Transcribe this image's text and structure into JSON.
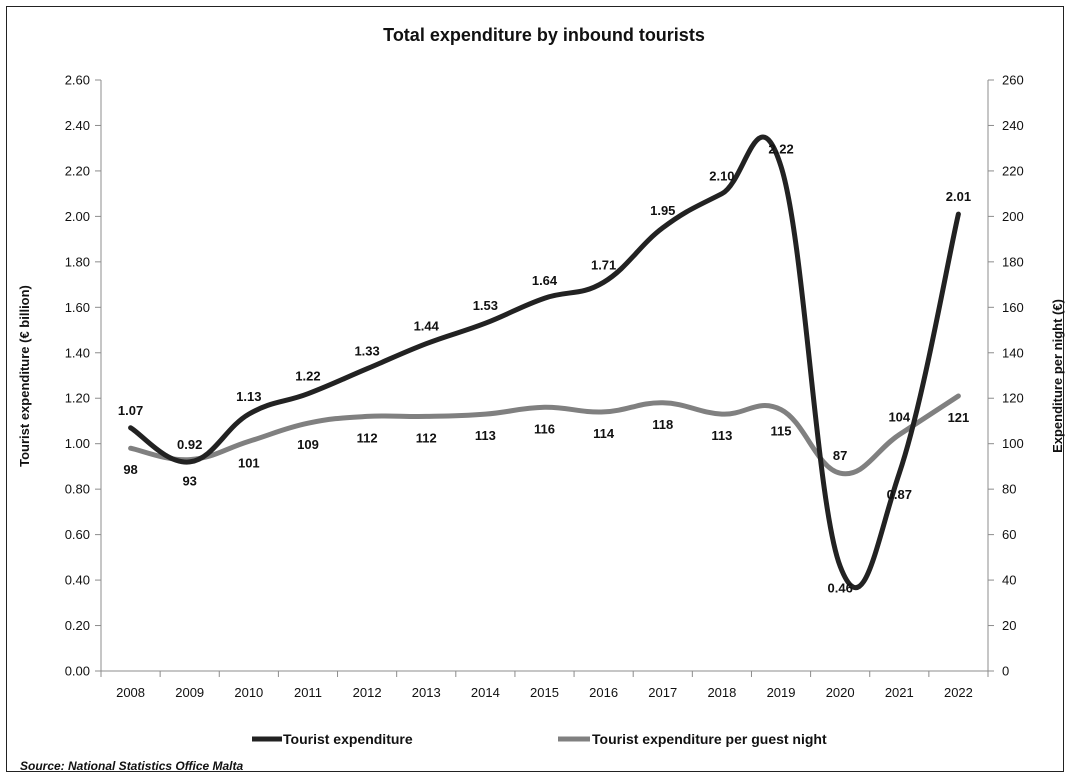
{
  "chart_data": {
    "type": "line",
    "title": "Total expenditure by inbound tourists",
    "categories": [
      "2008",
      "2009",
      "2010",
      "2011",
      "2012",
      "2013",
      "2014",
      "2015",
      "2016",
      "2017",
      "2018",
      "2019",
      "2020",
      "2021",
      "2022"
    ],
    "ylabel_left": "Tourist expenditure (€ billion)",
    "ylabel_right": "Expenditure per night (€)",
    "y_left": {
      "min": 0,
      "max": 2.6,
      "step": 0.2,
      "ticks": [
        "0.00",
        "0.20",
        "0.40",
        "0.60",
        "0.80",
        "1.00",
        "1.20",
        "1.40",
        "1.60",
        "1.80",
        "2.00",
        "2.20",
        "2.40",
        "2.60"
      ]
    },
    "y_right": {
      "min": 0,
      "max": 260,
      "step": 20,
      "ticks": [
        "0",
        "20",
        "40",
        "60",
        "80",
        "100",
        "120",
        "140",
        "160",
        "180",
        "200",
        "220",
        "240",
        "260"
      ]
    },
    "series": [
      {
        "name": "Tourist expenditure",
        "axis": "left",
        "color": "#222222",
        "values": [
          1.07,
          0.92,
          1.13,
          1.22,
          1.33,
          1.44,
          1.53,
          1.64,
          1.71,
          1.95,
          2.1,
          2.22,
          0.46,
          0.87,
          2.01
        ],
        "labels": [
          "1.07",
          "0.92",
          "1.13",
          "1.22",
          "1.33",
          "1.44",
          "1.53",
          "1.64",
          "1.71",
          "1.95",
          "2.10",
          "2.22",
          "0.46",
          "0.87",
          "2.01"
        ],
        "label_pos": [
          "above",
          "above",
          "above",
          "above",
          "above",
          "above",
          "above",
          "above",
          "above",
          "above",
          "above",
          "above",
          "below",
          "below",
          "above"
        ]
      },
      {
        "name": "Tourist expenditure per guest night",
        "axis": "right",
        "color": "#808080",
        "values": [
          98,
          93,
          101,
          109,
          112,
          112,
          113,
          116,
          114,
          118,
          113,
          115,
          87,
          104,
          121
        ],
        "labels": [
          "98",
          "93",
          "101",
          "109",
          "112",
          "112",
          "113",
          "116",
          "114",
          "118",
          "113",
          "115",
          "87",
          "104",
          "121"
        ],
        "label_pos": [
          "below",
          "below",
          "below",
          "below",
          "below",
          "below",
          "below",
          "below",
          "below",
          "below",
          "below",
          "below",
          "above",
          "above",
          "below"
        ]
      }
    ],
    "legend_position": "bottom",
    "grid": false
  },
  "source": "Source: National Statistics Office Malta"
}
